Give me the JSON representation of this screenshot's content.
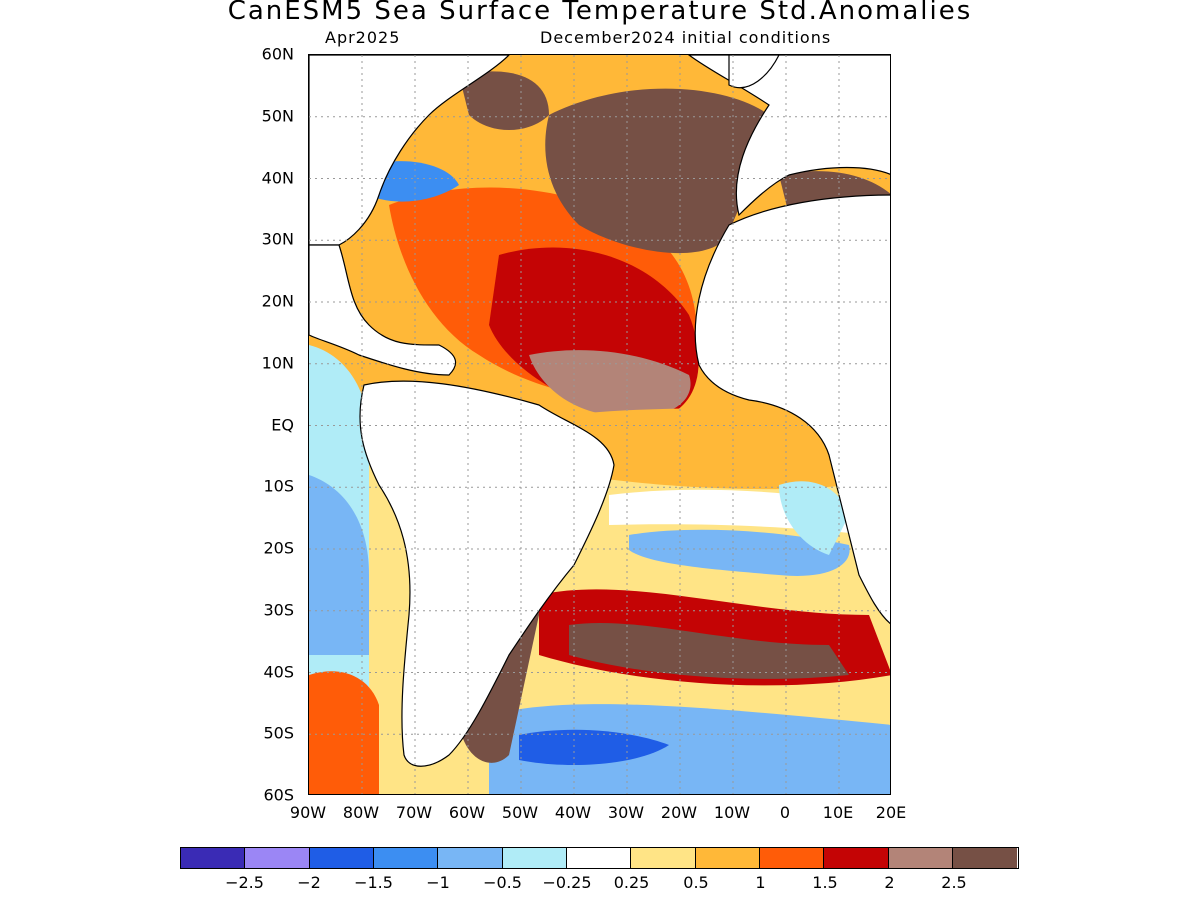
{
  "title": "CanESM5 Sea Surface Temperature Std.Anomalies",
  "valid_month": "Apr2025",
  "init_conditions": "December2024 initial conditions",
  "lat_labels": [
    "60N",
    "50N",
    "40N",
    "30N",
    "20N",
    "10N",
    "EQ",
    "10S",
    "20S",
    "30S",
    "40S",
    "50S",
    "60S"
  ],
  "lon_labels": [
    "90W",
    "80W",
    "70W",
    "60W",
    "50W",
    "40W",
    "30W",
    "20W",
    "10W",
    "0",
    "10E",
    "20E"
  ],
  "colorbar": {
    "colors": [
      "#3a2bb5",
      "#9b86f5",
      "#1f5de6",
      "#3c8ef2",
      "#78b6f5",
      "#b0ecf7",
      "#ffffff",
      "#ffe486",
      "#ffb838",
      "#ff5c08",
      "#c40405",
      "#b38478",
      "#765045"
    ],
    "labels": [
      "-2.5",
      "-2",
      "-1.5",
      "-1",
      "-0.5",
      "-0.25",
      "0.25",
      "0.5",
      "1",
      "1.5",
      "2",
      "2.5"
    ]
  },
  "map_regions": [
    {
      "name": "north-atlantic-warm",
      "fill": "#ffb838"
    },
    {
      "name": "subtropical-hot",
      "fill": "#ff5c08"
    },
    {
      "name": "tropical-extreme",
      "fill": "#c40405"
    },
    {
      "name": "northeast-atlantic-max",
      "fill": "#765045"
    },
    {
      "name": "equatorial-warm",
      "fill": "#ffb838"
    },
    {
      "name": "south-atlantic-cool",
      "fill": "#78b6f5"
    },
    {
      "name": "southern-ocean-cold",
      "fill": "#1f5de6"
    },
    {
      "name": "south-atlantic-extreme",
      "fill": "#765045"
    }
  ]
}
